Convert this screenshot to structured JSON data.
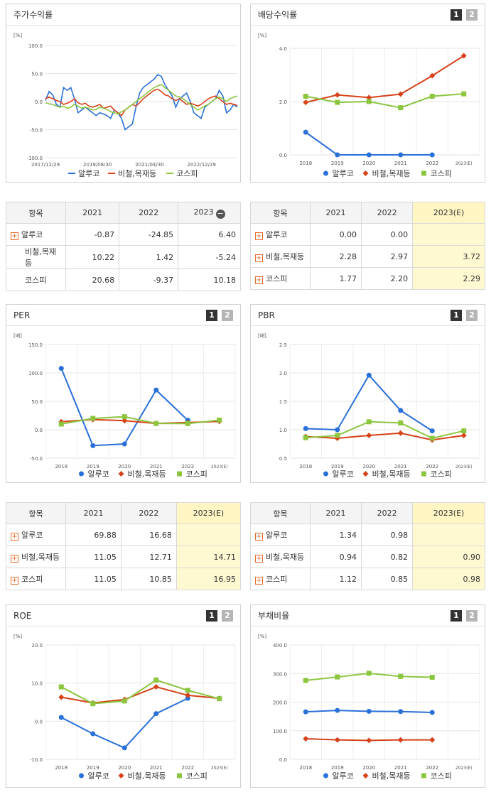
{
  "colors": {
    "company": "#2a70d9",
    "industry": "#d6421a",
    "kospi": "#8cc63f"
  },
  "legend": [
    "알루코",
    "비철,목재등",
    "코스피"
  ],
  "stock_return": {
    "title": "주가수익률",
    "chart_data": {
      "type": "line",
      "unit": "[%]",
      "x_ticks": [
        "2017/12/28",
        "2019/08/30",
        "2021/04/30",
        "2022/12/29"
      ],
      "ylim": [
        -100,
        100
      ],
      "y_ticks": [
        "100.0",
        "50.0",
        "0.0",
        "-50.0",
        "-100.0"
      ],
      "series": [
        {
          "name": "알루코",
          "values": [
            2,
            18,
            12,
            -5,
            -10,
            25,
            20,
            25,
            5,
            -20,
            -15,
            -10,
            -15,
            -20,
            -25,
            -20,
            -22,
            -25,
            -30,
            -15,
            -20,
            -30,
            -50,
            -45,
            -40,
            -10,
            15,
            25,
            30,
            35,
            40,
            48,
            45,
            30,
            20,
            10,
            -10,
            5,
            10,
            15,
            0,
            -20,
            -25,
            -30,
            -10,
            -5,
            0,
            5,
            20,
            10,
            -20,
            -15,
            -5,
            -10
          ]
        },
        {
          "name": "비철,목재등",
          "values": [
            5,
            8,
            5,
            2,
            0,
            -5,
            -3,
            0,
            5,
            -2,
            -5,
            -3,
            -8,
            -10,
            -8,
            -5,
            -12,
            -10,
            -8,
            -15,
            -20,
            -25,
            -15,
            -10,
            -5,
            -8,
            -2,
            5,
            10,
            15,
            20,
            22,
            18,
            12,
            10,
            5,
            2,
            5,
            0,
            -5,
            -3,
            -5,
            -8,
            -5,
            0,
            5,
            8,
            10,
            5,
            0,
            -5,
            -3,
            -5,
            -7
          ]
        },
        {
          "name": "코스피",
          "values": [
            -2,
            -4,
            -5,
            -8,
            -10,
            -8,
            -12,
            -10,
            -5,
            -8,
            -12,
            -10,
            -12,
            -15,
            -14,
            -10,
            -12,
            -14,
            -18,
            -20,
            -22,
            -18,
            -15,
            -10,
            -5,
            0,
            5,
            10,
            15,
            20,
            25,
            28,
            30,
            25,
            20,
            15,
            10,
            8,
            5,
            0,
            -5,
            -10,
            -15,
            -12,
            -8,
            -5,
            0,
            5,
            8,
            5,
            0,
            5,
            8,
            10
          ]
        }
      ]
    }
  },
  "dividend": {
    "title": "배당수익률",
    "pages": [
      "1",
      "2"
    ],
    "chart_data": {
      "type": "line",
      "unit": "[%]",
      "categories": [
        "2018",
        "2019",
        "2020",
        "2021",
        "2022",
        "2023(E)"
      ],
      "ylim": [
        0,
        4
      ],
      "y_ticks": [
        "4.0",
        "2.0",
        "0.0"
      ],
      "series": [
        {
          "name": "알루코",
          "values": [
            0.85,
            0.0,
            0.0,
            0.0,
            0.0,
            null
          ]
        },
        {
          "name": "비철,목재등",
          "values": [
            1.97,
            2.25,
            2.15,
            2.28,
            2.97,
            3.72
          ]
        },
        {
          "name": "코스피",
          "values": [
            2.2,
            1.97,
            2.0,
            1.77,
            2.2,
            2.29
          ]
        }
      ]
    }
  },
  "table_return": {
    "headers": [
      "항목",
      "2021",
      "2022",
      "2023"
    ],
    "rows": [
      {
        "name": "알루코",
        "values": [
          "-0.87",
          "-24.85",
          "6.40"
        ]
      },
      {
        "name": "비철,목재등",
        "values": [
          "10.22",
          "1.42",
          "-5.24"
        ]
      },
      {
        "name": "코스피",
        "values": [
          "20.68",
          "-9.37",
          "10.18"
        ]
      }
    ]
  },
  "table_dividend": {
    "headers": [
      "항목",
      "2021",
      "2022",
      "2023(E)"
    ],
    "rows": [
      {
        "name": "알루코",
        "values": [
          "0.00",
          "0.00",
          ""
        ]
      },
      {
        "name": "비철,목재등",
        "values": [
          "2.28",
          "2.97",
          "3.72"
        ]
      },
      {
        "name": "코스피",
        "values": [
          "1.77",
          "2.20",
          "2.29"
        ]
      }
    ]
  },
  "per": {
    "title": "PER",
    "pages": [
      "1",
      "2"
    ],
    "chart_data": {
      "type": "line",
      "unit": "[배]",
      "categories": [
        "2018",
        "2019",
        "2020",
        "2021",
        "2022",
        "2023(E)"
      ],
      "ylim": [
        -50,
        150
      ],
      "y_ticks": [
        "150.0",
        "100.0",
        "50.0",
        "0.0",
        "-50.0"
      ],
      "series": [
        {
          "name": "알루코",
          "values": [
            108,
            -28,
            -25,
            69.88,
            16.68,
            null
          ]
        },
        {
          "name": "비철,목재등",
          "values": [
            14,
            18,
            16,
            11.05,
            12.71,
            14.71
          ]
        },
        {
          "name": "코스피",
          "values": [
            10,
            20,
            23,
            11.05,
            10.85,
            16.95
          ]
        }
      ]
    }
  },
  "pbr": {
    "title": "PBR",
    "pages": [
      "1",
      "2"
    ],
    "chart_data": {
      "type": "line",
      "unit": "[배]",
      "categories": [
        "2018",
        "2019",
        "2020",
        "2021",
        "2022",
        "2023(E)"
      ],
      "ylim": [
        0.5,
        2.5
      ],
      "y_ticks": [
        "2.5",
        "2.0",
        "1.5",
        "1.0",
        "0.5"
      ],
      "series": [
        {
          "name": "알루코",
          "values": [
            1.02,
            1.0,
            1.96,
            1.34,
            0.98,
            null
          ]
        },
        {
          "name": "비철,목재등",
          "values": [
            0.88,
            0.85,
            0.9,
            0.94,
            0.82,
            0.9
          ]
        },
        {
          "name": "코스피",
          "values": [
            0.86,
            0.9,
            1.14,
            1.12,
            0.85,
            0.98
          ]
        }
      ]
    }
  },
  "table_per": {
    "headers": [
      "항목",
      "2021",
      "2022",
      "2023(E)"
    ],
    "rows": [
      {
        "name": "알루코",
        "values": [
          "69.88",
          "16.68",
          ""
        ]
      },
      {
        "name": "비철,목재등",
        "values": [
          "11.05",
          "12.71",
          "14.71"
        ]
      },
      {
        "name": "코스피",
        "values": [
          "11.05",
          "10.85",
          "16.95"
        ]
      }
    ]
  },
  "table_pbr": {
    "headers": [
      "항목",
      "2021",
      "2022",
      "2023(E)"
    ],
    "rows": [
      {
        "name": "알루코",
        "values": [
          "1.34",
          "0.98",
          ""
        ]
      },
      {
        "name": "비철,목재등",
        "values": [
          "0.94",
          "0.82",
          "0.90"
        ]
      },
      {
        "name": "코스피",
        "values": [
          "1.12",
          "0.85",
          "0.98"
        ]
      }
    ]
  },
  "roe": {
    "title": "ROE",
    "pages": [
      "1",
      "2"
    ],
    "chart_data": {
      "type": "line",
      "unit": "[%]",
      "categories": [
        "2018",
        "2019",
        "2020",
        "2021",
        "2022",
        "2023(E)"
      ],
      "ylim": [
        -10,
        20
      ],
      "y_ticks": [
        "20.0",
        "10.0",
        "0.0",
        "-10.0"
      ],
      "series": [
        {
          "name": "알루코",
          "values": [
            1.0,
            -3.3,
            -7.0,
            2.0,
            6.0,
            null
          ]
        },
        {
          "name": "비철,목재등",
          "values": [
            6.3,
            4.8,
            5.7,
            9.0,
            6.8,
            6.0
          ]
        },
        {
          "name": "코스피",
          "values": [
            9.0,
            4.6,
            5.3,
            10.8,
            8.1,
            5.9
          ]
        }
      ]
    }
  },
  "debt": {
    "title": "부채비율",
    "pages": [
      "1",
      "2"
    ],
    "chart_data": {
      "type": "line",
      "unit": "[%]",
      "categories": [
        "2018",
        "2019",
        "2020",
        "2021",
        "2022",
        "2023(E)"
      ],
      "ylim": [
        0,
        400
      ],
      "y_ticks": [
        "400.0",
        "300.0",
        "200.0",
        "100.0",
        "0.0"
      ],
      "series": [
        {
          "name": "알루코",
          "values": [
            166,
            171,
            168,
            167,
            164,
            null
          ]
        },
        {
          "name": "비철,목재등",
          "values": [
            72,
            68,
            66,
            68,
            68,
            null
          ]
        },
        {
          "name": "코스피",
          "values": [
            276,
            288,
            301,
            290,
            287,
            null
          ]
        }
      ]
    }
  }
}
